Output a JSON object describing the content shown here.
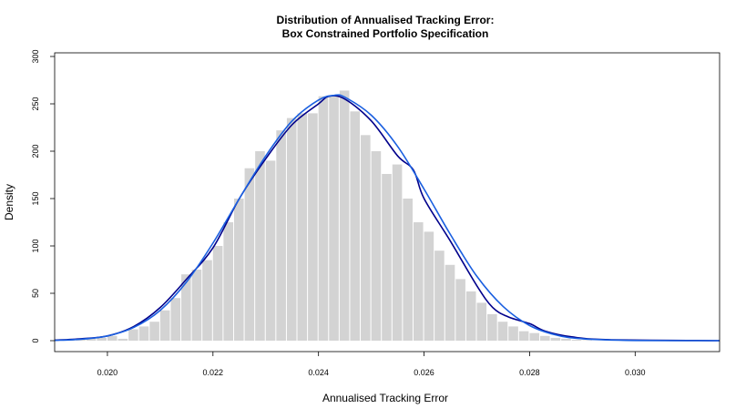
{
  "chart_data": {
    "type": "histogram",
    "title_line1": "Distribution of Annualised Tracking Error:",
    "title_line2": "Box Constrained Portfolio Specification",
    "xlabel": "Annualised Tracking Error",
    "ylabel": "Density",
    "xlim": [
      0.019,
      0.0316
    ],
    "ylim": [
      0,
      300
    ],
    "xticks": [
      0.02,
      0.022,
      0.024,
      0.026,
      0.028,
      0.03
    ],
    "xtick_labels": [
      "0.020",
      "0.022",
      "0.024",
      "0.026",
      "0.028",
      "0.030"
    ],
    "yticks": [
      0,
      50,
      100,
      150,
      200,
      250,
      300
    ],
    "ytick_labels": [
      "0",
      "50",
      "100",
      "150",
      "200",
      "250",
      "300"
    ],
    "bin_width": 0.0002,
    "bin_start": 0.0192,
    "bar_color": "#d3d3d3",
    "bar_values": [
      0.5,
      1,
      2,
      3,
      5,
      2,
      12,
      15,
      20,
      32,
      45,
      70,
      75,
      85,
      100,
      125,
      150,
      182,
      200,
      190,
      222,
      235,
      240,
      240,
      258,
      258,
      264,
      242,
      217,
      200,
      176,
      186,
      150,
      125,
      115,
      95,
      80,
      65,
      52,
      40,
      28,
      20,
      15,
      10,
      8,
      5,
      3,
      2,
      1,
      0.5
    ],
    "series": [
      {
        "name": "",
        "color": "#00008b",
        "points": [
          [
            0.019,
            0.5
          ],
          [
            0.0195,
            2
          ],
          [
            0.02,
            5
          ],
          [
            0.0205,
            15
          ],
          [
            0.021,
            35
          ],
          [
            0.0215,
            65
          ],
          [
            0.022,
            98
          ],
          [
            0.0225,
            150
          ],
          [
            0.023,
            192
          ],
          [
            0.0235,
            228
          ],
          [
            0.024,
            250
          ],
          [
            0.0242,
            258
          ],
          [
            0.0245,
            255
          ],
          [
            0.025,
            232
          ],
          [
            0.0255,
            195
          ],
          [
            0.0258,
            180
          ],
          [
            0.026,
            150
          ],
          [
            0.0265,
            105
          ],
          [
            0.027,
            58
          ],
          [
            0.0273,
            35
          ],
          [
            0.0276,
            25
          ],
          [
            0.028,
            18
          ],
          [
            0.0283,
            10
          ],
          [
            0.0288,
            4
          ],
          [
            0.0295,
            1
          ],
          [
            0.0316,
            0
          ]
        ]
      },
      {
        "name": "",
        "color": "#1a5fe0",
        "points": [
          [
            0.019,
            0.3
          ],
          [
            0.0195,
            1.5
          ],
          [
            0.02,
            5
          ],
          [
            0.0205,
            14
          ],
          [
            0.021,
            32
          ],
          [
            0.0215,
            62
          ],
          [
            0.022,
            103
          ],
          [
            0.0225,
            150
          ],
          [
            0.023,
            195
          ],
          [
            0.0235,
            232
          ],
          [
            0.024,
            254
          ],
          [
            0.0243,
            259
          ],
          [
            0.0245,
            257
          ],
          [
            0.025,
            238
          ],
          [
            0.0255,
            205
          ],
          [
            0.026,
            160
          ],
          [
            0.0265,
            112
          ],
          [
            0.027,
            68
          ],
          [
            0.0275,
            36
          ],
          [
            0.028,
            16
          ],
          [
            0.0285,
            6
          ],
          [
            0.029,
            2
          ],
          [
            0.03,
            0.2
          ],
          [
            0.0316,
            0
          ]
        ]
      }
    ]
  }
}
